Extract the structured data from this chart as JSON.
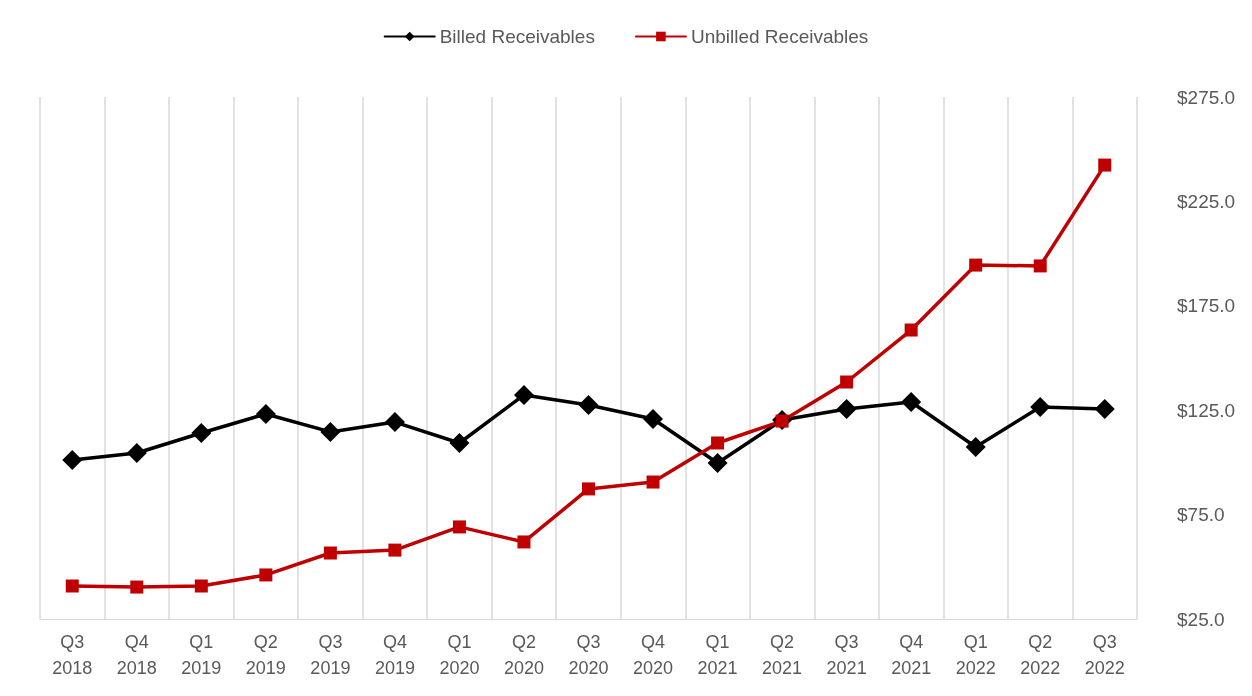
{
  "chart_data": {
    "type": "line",
    "categories": [
      "Q3\n2018",
      "Q4\n2018",
      "Q1\n2019",
      "Q2\n2019",
      "Q3\n2019",
      "Q4\n2019",
      "Q1\n2020",
      "Q2\n2020",
      "Q3\n2020",
      "Q4\n2020",
      "Q1\n2021",
      "Q2\n2021",
      "Q3\n2021",
      "Q4\n2021",
      "Q1\n2022",
      "Q2\n2022",
      "Q3\n2022"
    ],
    "series": [
      {
        "name": "Billed Receivables",
        "color": "#000000",
        "marker": "diamond",
        "values": [
          101.1,
          104.5,
          114.1,
          123.2,
          114.6,
          119.3,
          109.3,
          132.3,
          127.5,
          120.8,
          99.7,
          120.3,
          125.6,
          128.9,
          107.4,
          126.5,
          125.6
        ]
      },
      {
        "name": "Unbilled Receivables",
        "color": "#c00000",
        "marker": "square",
        "values": [
          40.8,
          40.3,
          40.8,
          46.1,
          56.6,
          58.0,
          69.1,
          61.9,
          87.3,
          90.6,
          109.3,
          119.8,
          138.5,
          163.4,
          194.5,
          194.1,
          242.4
        ]
      }
    ],
    "ylim": [
      25,
      275
    ],
    "yticks": [
      {
        "value": 25,
        "label": "$25.0"
      },
      {
        "value": 75,
        "label": "$75.0"
      },
      {
        "value": 125,
        "label": "$125.0"
      },
      {
        "value": 175,
        "label": "$175.0"
      },
      {
        "value": 225,
        "label": "$225.0"
      },
      {
        "value": 275,
        "label": "$275.0"
      }
    ],
    "grid": "x",
    "legend": "top",
    "line_style": "solid"
  }
}
